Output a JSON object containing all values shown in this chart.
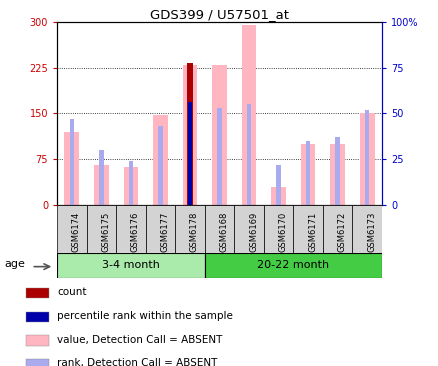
{
  "title": "GDS399 / U57501_at",
  "samples": [
    "GSM6174",
    "GSM6175",
    "GSM6176",
    "GSM6177",
    "GSM6178",
    "GSM6168",
    "GSM6169",
    "GSM6170",
    "GSM6171",
    "GSM6172",
    "GSM6173"
  ],
  "group1_label": "3-4 month",
  "group2_label": "20-22 month",
  "group1_count": 5,
  "group2_count": 6,
  "group1_color": "#aaeaaa",
  "group2_color": "#44cc44",
  "value_absent": [
    120,
    65,
    62,
    148,
    230,
    230,
    295,
    30,
    100,
    100,
    150
  ],
  "rank_absent_pct": [
    47,
    30,
    24,
    43,
    56,
    53,
    55,
    22,
    35,
    37,
    52
  ],
  "count": [
    0,
    0,
    0,
    0,
    232,
    0,
    0,
    0,
    0,
    0,
    0
  ],
  "percentile_rank": [
    0,
    0,
    0,
    0,
    56,
    0,
    0,
    0,
    0,
    0,
    0
  ],
  "ylim_left": [
    0,
    300
  ],
  "ylim_right": [
    0,
    100
  ],
  "yticks_left": [
    0,
    75,
    150,
    225,
    300
  ],
  "yticks_right": [
    0,
    25,
    50,
    75,
    100
  ],
  "ytick_labels_right": [
    "0",
    "25",
    "50",
    "75",
    "100%"
  ],
  "color_value_absent": "#ffb6c1",
  "color_rank_absent": "#aaaaee",
  "color_count": "#aa0000",
  "color_percentile": "#0000aa",
  "left_axis_color": "#cc0000",
  "right_axis_color": "#0000cc",
  "bar_width": 0.5,
  "rank_bar_width": 0.15
}
